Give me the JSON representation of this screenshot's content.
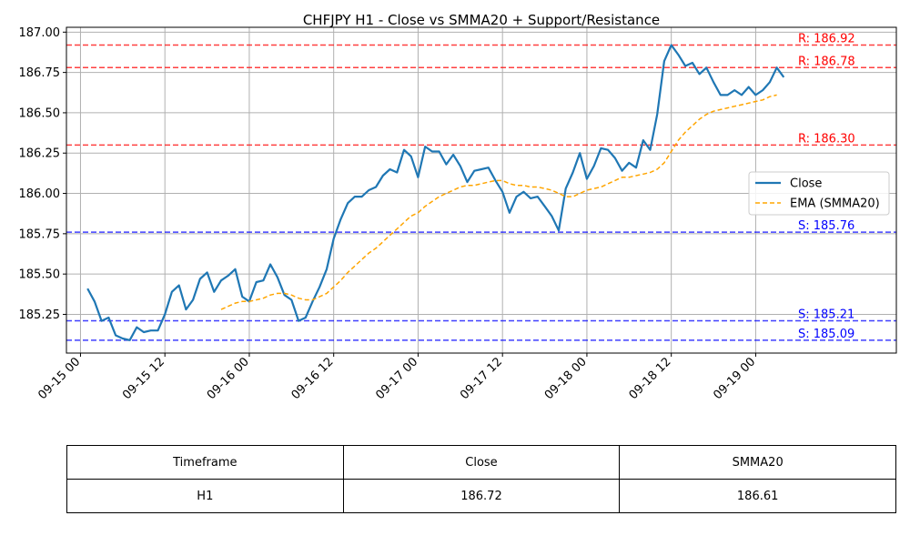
{
  "chart_data": {
    "type": "line",
    "title": "CHFJPY H1 - Close vs SMMA20 + Support/Resistance",
    "xlabel": "",
    "ylabel": "",
    "grid": true,
    "legend_position": "center-right",
    "ylim": [
      185.01,
      187.03
    ],
    "xlim": [
      "09-14 22:00",
      "09-19 20:00"
    ],
    "x_ticks": [
      "09-15 00",
      "09-15 12",
      "09-16 00",
      "09-16 12",
      "09-17 00",
      "09-17 12",
      "09-18 00",
      "09-18 12",
      "09-19 00"
    ],
    "y_ticks": [
      "185.25",
      "185.50",
      "185.75",
      "186.00",
      "186.25",
      "186.50",
      "186.75",
      "187.00"
    ],
    "series": [
      {
        "name": "Close",
        "color": "#1f77b4",
        "style": "solid",
        "start": "09-15 01:00",
        "step_hours": 1,
        "values": [
          185.41,
          185.33,
          185.21,
          185.23,
          185.12,
          185.1,
          185.09,
          185.17,
          185.14,
          185.15,
          185.15,
          185.25,
          185.39,
          185.43,
          185.28,
          185.34,
          185.47,
          185.51,
          185.39,
          185.46,
          185.49,
          185.53,
          185.36,
          185.33,
          185.45,
          185.46,
          185.56,
          185.48,
          185.37,
          185.34,
          185.21,
          185.23,
          185.33,
          185.42,
          185.53,
          185.72,
          185.84,
          185.94,
          185.98,
          185.98,
          186.02,
          186.04,
          186.11,
          186.15,
          186.13,
          186.27,
          186.23,
          186.1,
          186.29,
          186.26,
          186.26,
          186.18,
          186.24,
          186.17,
          186.07,
          186.14,
          186.15,
          186.16,
          186.08,
          186.01,
          185.88,
          185.98,
          186.01,
          185.97,
          185.98,
          185.92,
          185.86,
          185.77,
          186.03,
          186.13,
          186.25,
          186.09,
          186.17,
          186.28,
          186.27,
          186.22,
          186.14,
          186.19,
          186.16,
          186.33,
          186.27,
          186.49,
          186.82,
          186.92,
          186.86,
          186.79,
          186.81,
          186.74,
          186.78,
          186.69,
          186.61,
          186.61,
          186.64,
          186.61,
          186.66,
          186.61,
          186.64,
          186.69,
          186.78,
          186.72
        ]
      },
      {
        "name": "EMA (SMMA20)",
        "color": "#ffa500",
        "style": "dashed",
        "start": "09-15 20:00",
        "step_hours": 1,
        "values": [
          185.28,
          185.3,
          185.32,
          185.33,
          185.33,
          185.34,
          185.35,
          185.37,
          185.38,
          185.38,
          185.37,
          185.35,
          185.34,
          185.34,
          185.36,
          185.38,
          185.42,
          185.46,
          185.51,
          185.55,
          185.59,
          185.63,
          185.66,
          185.7,
          185.74,
          185.78,
          185.82,
          185.86,
          185.88,
          185.92,
          185.95,
          185.98,
          186.0,
          186.02,
          186.04,
          186.05,
          186.05,
          186.06,
          186.07,
          186.08,
          186.08,
          186.06,
          186.05,
          186.05,
          186.04,
          186.04,
          186.03,
          186.02,
          186.0,
          185.98,
          185.98,
          186.0,
          186.02,
          186.03,
          186.04,
          186.06,
          186.08,
          186.1,
          186.1,
          186.11,
          186.12,
          186.13,
          186.15,
          186.19,
          186.26,
          186.33,
          186.38,
          186.42,
          186.46,
          186.49,
          186.51,
          186.52,
          186.53,
          186.54,
          186.55,
          186.56,
          186.57,
          186.58,
          186.6,
          186.61
        ]
      }
    ],
    "resistance": [
      {
        "value": 186.92,
        "label": "R: 186.92"
      },
      {
        "value": 186.78,
        "label": "R: 186.78"
      },
      {
        "value": 186.3,
        "label": "R: 186.30"
      }
    ],
    "support": [
      {
        "value": 185.76,
        "label": "S: 185.76"
      },
      {
        "value": 185.21,
        "label": "S: 185.21"
      },
      {
        "value": 185.09,
        "label": "S: 185.09"
      }
    ],
    "colors": {
      "resistance": "#ff0000",
      "support": "#0000ff",
      "grid": "#b0b0b0"
    }
  },
  "table": {
    "headers": [
      "Timeframe",
      "Close",
      "SMMA20"
    ],
    "row": [
      "H1",
      "186.72",
      "186.61"
    ]
  }
}
